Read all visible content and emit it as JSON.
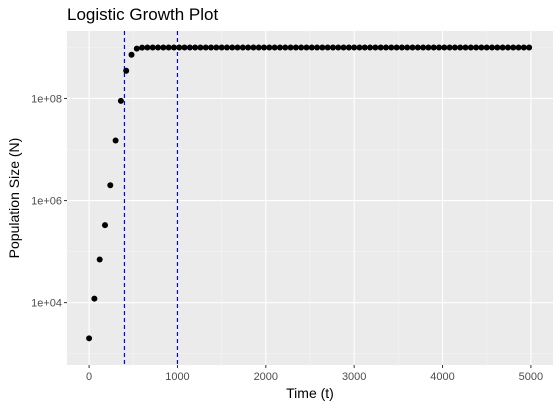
{
  "chart_data": {
    "type": "scatter",
    "title": "Logistic Growth Plot",
    "xlabel": "Time (t)",
    "ylabel": "Population Size (N)",
    "y_scale": "log10",
    "xlim": [
      -250,
      5250
    ],
    "ylim": [
      600,
      2100000000
    ],
    "x_ticks": [
      {
        "value": 0,
        "label": "0"
      },
      {
        "value": 1000,
        "label": "1000"
      },
      {
        "value": 2000,
        "label": "2000"
      },
      {
        "value": 3000,
        "label": "3000"
      },
      {
        "value": 4000,
        "label": "4000"
      },
      {
        "value": 5000,
        "label": "5000"
      }
    ],
    "y_ticks": [
      {
        "value": 10000,
        "label": "1e+04"
      },
      {
        "value": 1000000,
        "label": "1e+06"
      },
      {
        "value": 100000000,
        "label": "1e+08"
      }
    ],
    "vlines": [
      {
        "x": 400,
        "color": "#0000ff",
        "style": "dashed"
      },
      {
        "x": 1000,
        "color": "#0000ff",
        "style": "dashed"
      }
    ],
    "x": [
      0,
      60,
      120,
      180,
      240,
      300,
      360,
      420,
      480,
      540,
      600,
      660,
      720,
      780,
      840,
      900,
      960,
      1020,
      1080,
      1140,
      1200,
      1260,
      1320,
      1380,
      1440,
      1500,
      1560,
      1620,
      1680,
      1740,
      1800,
      1860,
      1920,
      1980,
      2040,
      2100,
      2160,
      2220,
      2280,
      2340,
      2400,
      2460,
      2520,
      2580,
      2640,
      2700,
      2760,
      2820,
      2880,
      2940,
      3000,
      3060,
      3120,
      3180,
      3240,
      3300,
      3360,
      3420,
      3480,
      3540,
      3600,
      3660,
      3720,
      3780,
      3840,
      3900,
      3960,
      4020,
      4080,
      4140,
      4200,
      4260,
      4320,
      4380,
      4440,
      4500,
      4560,
      4620,
      4680,
      4740,
      4800,
      4860,
      4920,
      4980
    ],
    "y": [
      2000,
      12000,
      70000,
      330000,
      2000000,
      15000000,
      90000000,
      350000000,
      720000000,
      950000000,
      990000000,
      1000000000,
      1000000000,
      1000000000,
      1000000000,
      1000000000,
      1000000000,
      1000000000,
      1000000000,
      1000000000,
      1000000000,
      1000000000,
      1000000000,
      1000000000,
      1000000000,
      1000000000,
      1000000000,
      1000000000,
      1000000000,
      1000000000,
      1000000000,
      1000000000,
      1000000000,
      1000000000,
      1000000000,
      1000000000,
      1000000000,
      1000000000,
      1000000000,
      1000000000,
      1000000000,
      1000000000,
      1000000000,
      1000000000,
      1000000000,
      1000000000,
      1000000000,
      1000000000,
      1000000000,
      1000000000,
      1000000000,
      1000000000,
      1000000000,
      1000000000,
      1000000000,
      1000000000,
      1000000000,
      1000000000,
      1000000000,
      1000000000,
      1000000000,
      1000000000,
      1000000000,
      1000000000,
      1000000000,
      1000000000,
      1000000000,
      1000000000,
      1000000000,
      1000000000,
      1000000000,
      1000000000,
      1000000000,
      1000000000,
      1000000000,
      1000000000,
      1000000000,
      1000000000,
      1000000000,
      1000000000,
      1000000000,
      1000000000,
      1000000000,
      1000000000
    ],
    "colors": {
      "panel": "#ebebeb",
      "grid_major": "#ffffff",
      "grid_minor": "#f4f4f4",
      "points": "#000000",
      "tick_text": "#4d4d4d",
      "tick_mark": "#333333"
    },
    "grid": true,
    "legend": "none"
  }
}
